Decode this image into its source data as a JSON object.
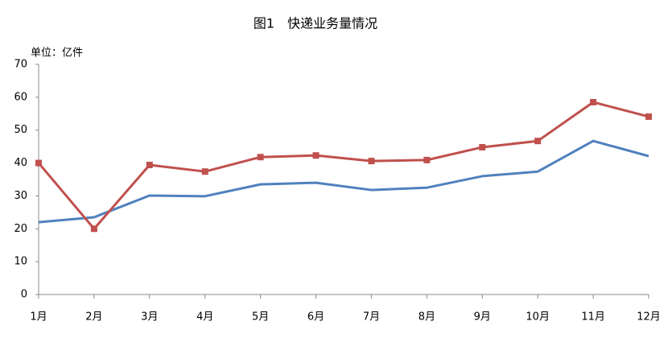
{
  "chart_data": {
    "type": "line",
    "title": "图1　快递业务量情况",
    "y_label": "单位：亿件",
    "categories": [
      "1月",
      "2月",
      "3月",
      "4月",
      "5月",
      "6月",
      "7月",
      "8月",
      "9月",
      "10月",
      "11月",
      "12月"
    ],
    "series": [
      {
        "color": "#4f81bd",
        "marker": "none",
        "values": [
          22,
          23.5,
          30.1,
          29.9,
          33.5,
          34,
          31.8,
          32.5,
          36,
          37.4,
          46.7,
          42.1
        ]
      },
      {
        "color": "#c0504d",
        "marker": "square",
        "values": [
          40,
          20,
          39.4,
          37.4,
          41.8,
          42.3,
          40.6,
          40.9,
          44.8,
          46.7,
          58.5,
          54.1
        ]
      }
    ],
    "ylim": [
      0,
      70
    ],
    "yticks": [
      0,
      10,
      20,
      30,
      40,
      50,
      60,
      70
    ],
    "grid": false
  }
}
